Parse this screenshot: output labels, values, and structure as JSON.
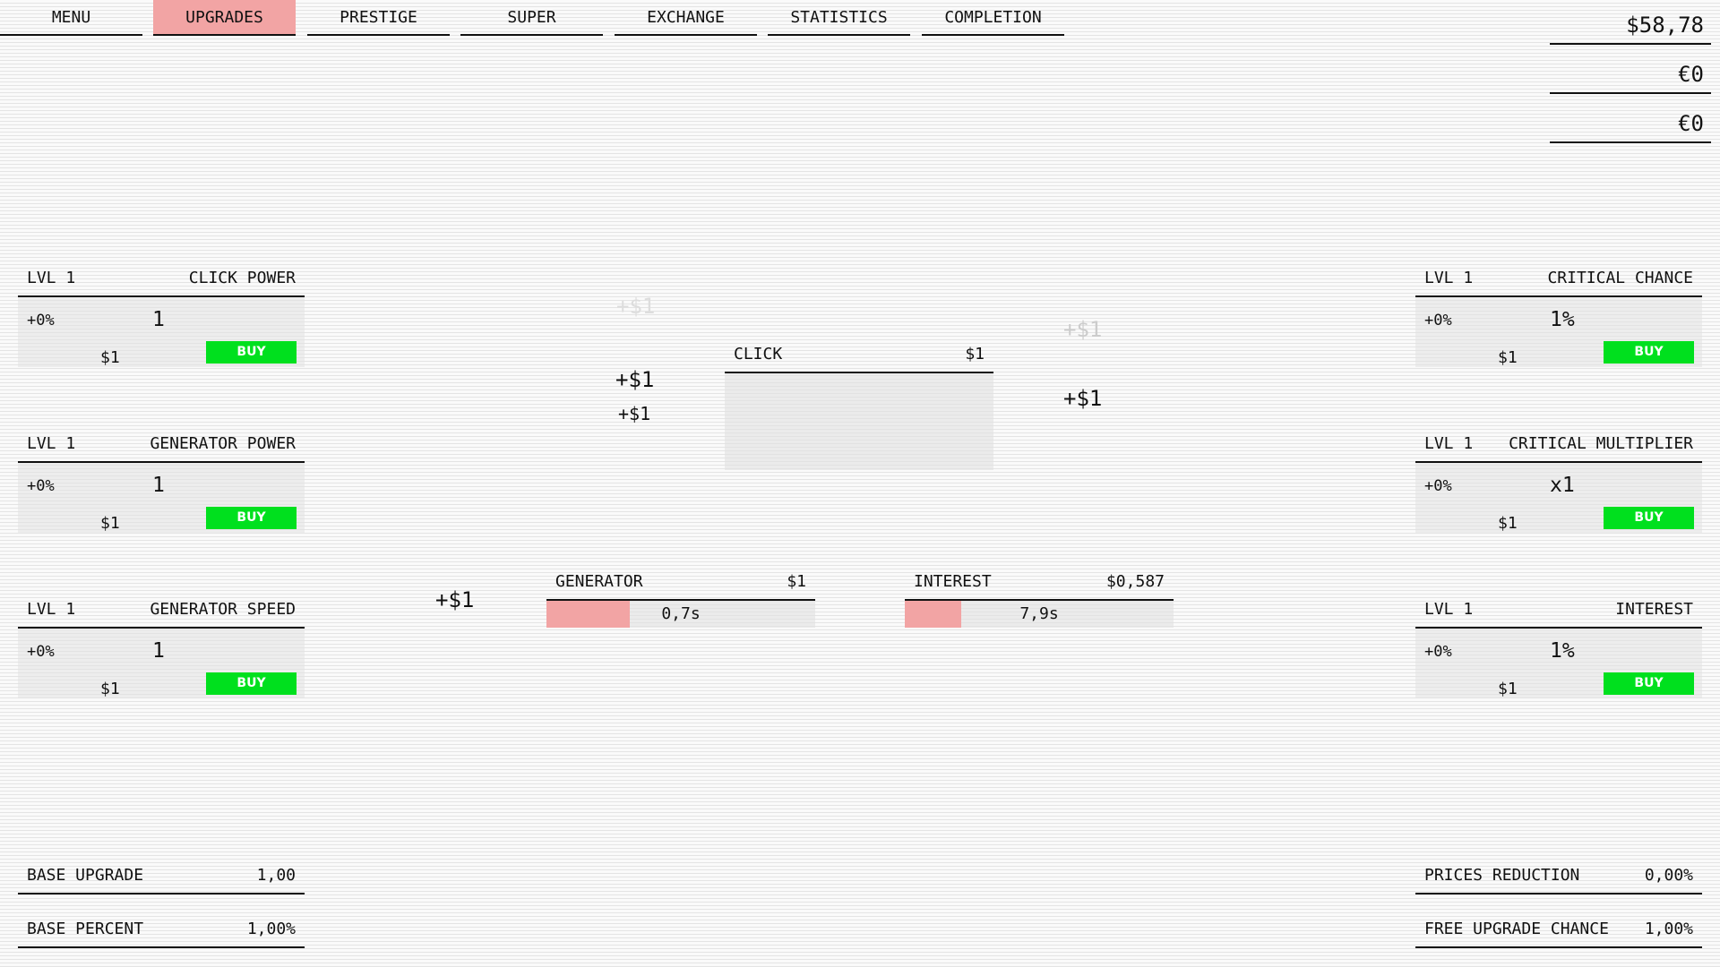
{
  "nav": {
    "tabs": [
      {
        "label": "MENU"
      },
      {
        "label": "UPGRADES",
        "active": true
      },
      {
        "label": "PRESTIGE"
      },
      {
        "label": "SUPER"
      },
      {
        "label": "EXCHANGE"
      },
      {
        "label": "STATISTICS"
      },
      {
        "label": "COMPLETION"
      }
    ]
  },
  "currencies": [
    "$58,78",
    "€0",
    "€0"
  ],
  "upgrades_left": [
    {
      "level": "LVL 1",
      "name": "CLICK POWER",
      "percent": "+0%",
      "value": "1",
      "price": "$1",
      "buy": "BUY"
    },
    {
      "level": "LVL 1",
      "name": "GENERATOR POWER",
      "percent": "+0%",
      "value": "1",
      "price": "$1",
      "buy": "BUY"
    },
    {
      "level": "LVL 1",
      "name": "GENERATOR SPEED",
      "percent": "+0%",
      "value": "1",
      "price": "$1",
      "buy": "BUY"
    }
  ],
  "upgrades_right": [
    {
      "level": "LVL 1",
      "name": "CRITICAL CHANCE",
      "percent": "+0%",
      "value": "1%",
      "price": "$1",
      "buy": "BUY"
    },
    {
      "level": "LVL 1",
      "name": "CRITICAL MULTIPLIER",
      "percent": "+0%",
      "value": "x1",
      "price": "$1",
      "buy": "BUY"
    },
    {
      "level": "LVL 1",
      "name": "INTEREST",
      "percent": "+0%",
      "value": "1%",
      "price": "$1",
      "buy": "BUY"
    }
  ],
  "click": {
    "label": "CLICK",
    "amount": "$1"
  },
  "generator": {
    "label": "GENERATOR",
    "amount": "$1",
    "time": "0,7s",
    "progress": 0.31
  },
  "interest": {
    "label": "INTEREST",
    "amount": "$0,587",
    "time": "7,9s",
    "progress": 0.21
  },
  "floating": [
    "+$1",
    "+$1",
    "+$1",
    "+$1",
    "+$1",
    "+$1"
  ],
  "stats_left": [
    {
      "label": "BASE UPGRADE",
      "value": "1,00"
    },
    {
      "label": "BASE PERCENT",
      "value": "1,00%"
    }
  ],
  "stats_right": [
    {
      "label": "PRICES REDUCTION",
      "value": "0,00%"
    },
    {
      "label": "FREE UPGRADE CHANCE",
      "value": "1,00%"
    }
  ],
  "colors": {
    "active_tab": "#f2a4a4",
    "buy": "#00e01e",
    "progress": "#f2a4a4"
  }
}
